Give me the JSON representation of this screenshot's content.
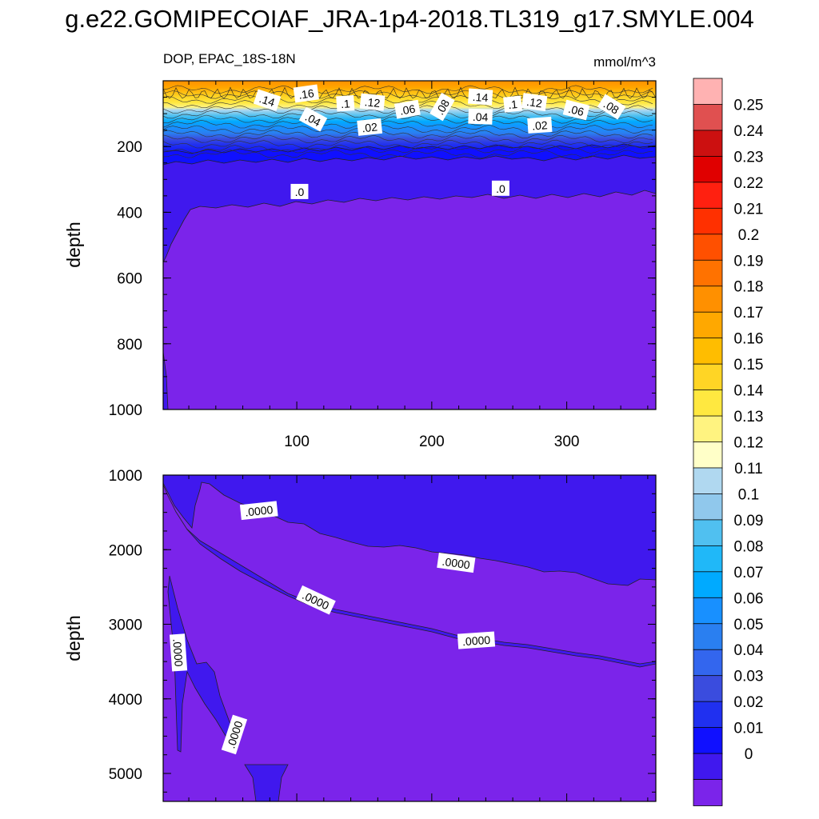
{
  "title": "g.e22.GOMIPECOIAF_JRA-1p4-2018.TL319_g17.SMYLE.004",
  "chart_data": [
    {
      "type": "heatmap",
      "panel": "upper",
      "variable_label": "DOP, EPAC_18S-18N",
      "units": "mmol/m^3",
      "ylabel": "depth",
      "ylim": [
        1000,
        0
      ],
      "xlim": [
        1,
        366
      ],
      "yticks": [
        200,
        400,
        600,
        800,
        1000
      ],
      "xticks": [
        100,
        200,
        300
      ],
      "contour_labels": [
        {
          "text": ".16",
          "x": 107,
          "y": 40
        },
        {
          "text": ".14",
          "x": 78,
          "y": 60
        },
        {
          "text": ".1",
          "x": 136,
          "y": 70
        },
        {
          "text": ".12",
          "x": 156,
          "y": 66
        },
        {
          "text": ".06",
          "x": 182,
          "y": 88
        },
        {
          "text": ".08",
          "x": 208,
          "y": 80
        },
        {
          "text": ".14",
          "x": 236,
          "y": 50
        },
        {
          "text": ".1",
          "x": 260,
          "y": 72
        },
        {
          "text": ".12",
          "x": 276,
          "y": 66
        },
        {
          "text": ".06",
          "x": 307,
          "y": 90
        },
        {
          "text": ".08",
          "x": 333,
          "y": 80
        },
        {
          "text": ".04",
          "x": 112,
          "y": 118
        },
        {
          "text": ".04",
          "x": 236,
          "y": 110
        },
        {
          "text": ".02",
          "x": 154,
          "y": 142
        },
        {
          "text": ".02",
          "x": 280,
          "y": 136
        },
        {
          "text": ".0",
          "x": 102,
          "y": 338
        },
        {
          "text": ".0",
          "x": 251,
          "y": 328
        }
      ]
    },
    {
      "type": "heatmap",
      "panel": "lower",
      "ylabel": "depth",
      "ylim": [
        5375,
        1000
      ],
      "xlim": [
        1,
        366
      ],
      "yticks": [
        1000,
        2000,
        3000,
        4000,
        5000
      ],
      "contour_labels": [
        {
          "text": ".0000",
          "x": 72,
          "y": 1480
        },
        {
          "text": ".0000",
          "x": 218,
          "y": 2180
        },
        {
          "text": ".0000",
          "x": 114,
          "y": 2680
        },
        {
          "text": ".0000",
          "x": 233,
          "y": 3220
        },
        {
          "text": ".0000",
          "x": 12,
          "y": 3380
        },
        {
          "text": ".0000",
          "x": 54,
          "y": 4480
        }
      ]
    }
  ],
  "colorbar": {
    "labels": [
      "0.25",
      "0.24",
      "0.23",
      "0.22",
      "0.21",
      "0.2",
      "0.19",
      "0.18",
      "0.17",
      "0.16",
      "0.15",
      "0.14",
      "0.13",
      "0.12",
      "0.11",
      "0.1",
      "0.09",
      "0.08",
      "0.07",
      "0.06",
      "0.05",
      "0.04",
      "0.03",
      "0.02",
      "0.01",
      "0"
    ],
    "colors": [
      "#ffb2b2",
      "#e05050",
      "#cc1010",
      "#e00000",
      "#ff2010",
      "#ff3000",
      "#ff5000",
      "#ff7200",
      "#ff9000",
      "#ffa800",
      "#ffbd00",
      "#ffd525",
      "#ffe840",
      "#fff380",
      "#ffffc8",
      "#b0d8f0",
      "#90c8ec",
      "#50c0f0",
      "#20b8f8",
      "#00aaff",
      "#1890ff",
      "#2a7ff0",
      "#3366ee",
      "#3a4cde",
      "#2030f0",
      "#1010ff",
      "#4018ee",
      "#7b24ea"
    ]
  },
  "colors": {
    "zero_fill": "#7b24ea",
    "band_fill": "#4018ee"
  }
}
